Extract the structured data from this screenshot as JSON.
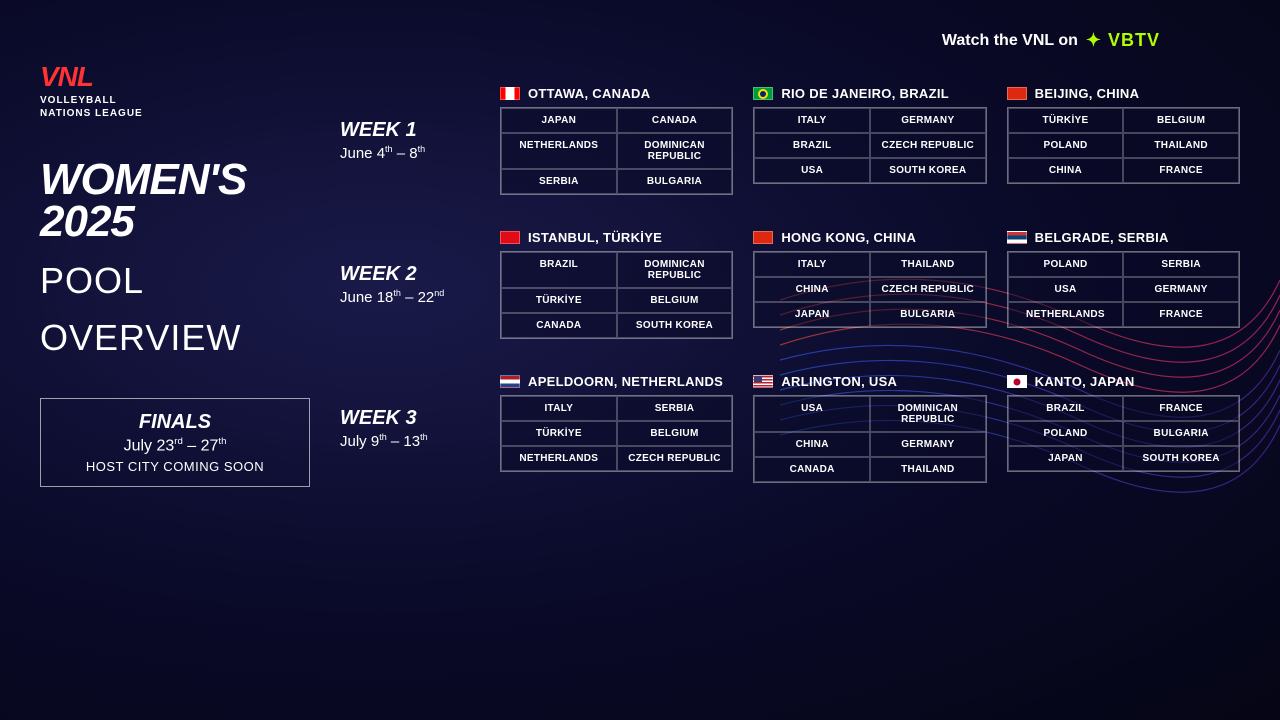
{
  "promo": {
    "prefix": "Watch the VNL on",
    "brand": "VBTV"
  },
  "logo": {
    "main": "VNL",
    "sub1": "VOLLEYBALL",
    "sub2": "NATIONS LEAGUE"
  },
  "title": {
    "line1": "WOMEN'S",
    "line2": "2025",
    "line3": "POOL",
    "line4": "OVERVIEW"
  },
  "finals": {
    "title": "FINALS",
    "dates_html": "July 23<sup>rd</sup> – 27<sup>th</sup>",
    "host": "HOST CITY COMING SOON"
  },
  "colors": {
    "accent": "#ff3333",
    "vbtv": "#b0ff00",
    "bg_dark": "#050515"
  },
  "weeks": [
    {
      "label": "WEEK 1",
      "dates_html": "June 4<sup>th</sup> – 8<sup>th</sup>",
      "pools": [
        {
          "flag": "ca",
          "city": "OTTAWA, CANADA",
          "teams": [
            "JAPAN",
            "CANADA",
            "NETHERLANDS",
            "DOMINICAN REPUBLIC",
            "SERBIA",
            "BULGARIA"
          ]
        },
        {
          "flag": "br",
          "city": "RIO DE JANEIRO, BRAZIL",
          "teams": [
            "ITALY",
            "GERMANY",
            "BRAZIL",
            "CZECH REPUBLIC",
            "USA",
            "SOUTH KOREA"
          ]
        },
        {
          "flag": "cn",
          "city": "BEIJING, CHINA",
          "teams": [
            "TÜRKİYE",
            "BELGIUM",
            "POLAND",
            "THAILAND",
            "CHINA",
            "FRANCE"
          ]
        }
      ]
    },
    {
      "label": "WEEK 2",
      "dates_html": "June 18<sup>th</sup> – 22<sup>nd</sup>",
      "pools": [
        {
          "flag": "tr",
          "city": "ISTANBUL, TÜRKİYE",
          "teams": [
            "BRAZIL",
            "DOMINICAN REPUBLIC",
            "TÜRKİYE",
            "BELGIUM",
            "CANADA",
            "SOUTH KOREA"
          ]
        },
        {
          "flag": "cn",
          "city": "HONG KONG, CHINA",
          "teams": [
            "ITALY",
            "THAILAND",
            "CHINA",
            "CZECH REPUBLIC",
            "JAPAN",
            "BULGARIA"
          ]
        },
        {
          "flag": "rs",
          "city": "BELGRADE, SERBIA",
          "teams": [
            "POLAND",
            "SERBIA",
            "USA",
            "GERMANY",
            "NETHERLANDS",
            "FRANCE"
          ]
        }
      ]
    },
    {
      "label": "WEEK 3",
      "dates_html": "July 9<sup>th</sup> – 13<sup>th</sup>",
      "pools": [
        {
          "flag": "nl",
          "city": "APELDOORN, NETHERLANDS",
          "teams": [
            "ITALY",
            "SERBIA",
            "TÜRKİYE",
            "BELGIUM",
            "NETHERLANDS",
            "CZECH REPUBLIC"
          ]
        },
        {
          "flag": "us",
          "city": "ARLINGTON, USA",
          "teams": [
            "USA",
            "DOMINICAN REPUBLIC",
            "CHINA",
            "GERMANY",
            "CANADA",
            "THAILAND"
          ]
        },
        {
          "flag": "jp",
          "city": "KANTO, JAPAN",
          "teams": [
            "BRAZIL",
            "FRANCE",
            "POLAND",
            "BULGARIA",
            "JAPAN",
            "SOUTH KOREA"
          ]
        }
      ]
    }
  ]
}
